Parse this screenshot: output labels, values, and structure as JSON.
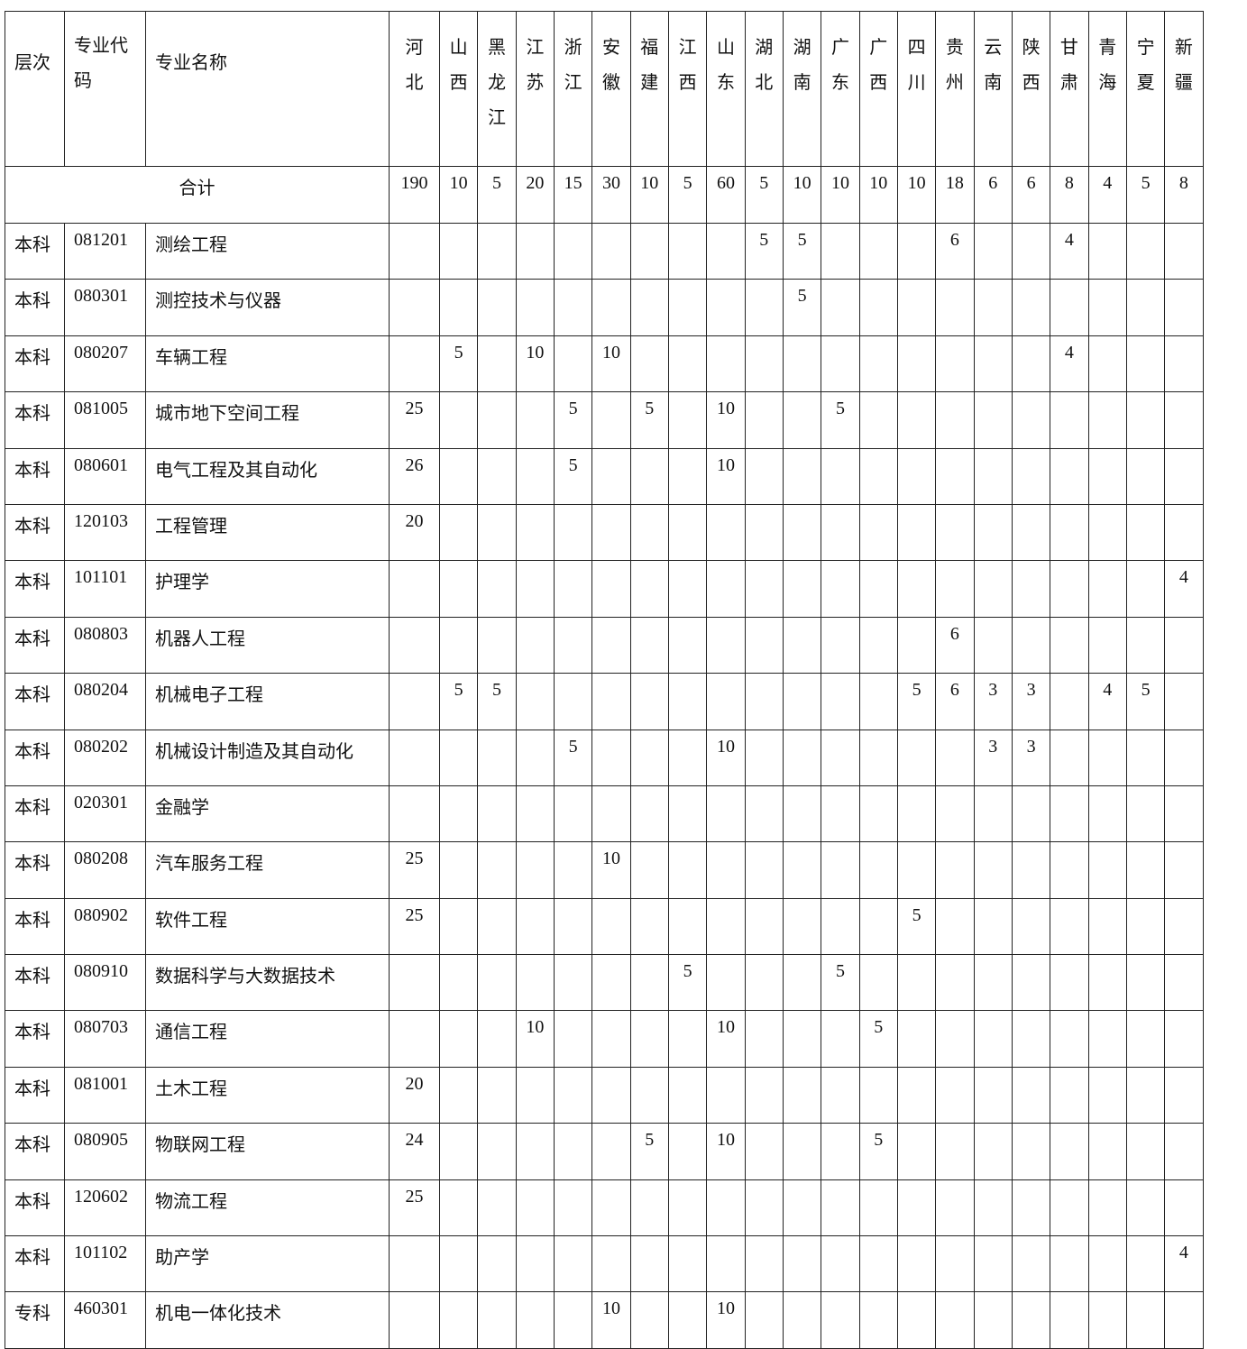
{
  "headers": {
    "level": "层次",
    "code": "专业代码",
    "name": "专业名称",
    "provinces": [
      "河北",
      "山西",
      "黑龙江",
      "江苏",
      "浙江",
      "安徽",
      "福建",
      "江西",
      "山东",
      "湖北",
      "湖南",
      "广东",
      "广西",
      "四川",
      "贵州",
      "云南",
      "陕西",
      "甘肃",
      "青海",
      "宁夏",
      "新疆"
    ]
  },
  "total": {
    "label": "合计",
    "values": [
      "190",
      "10",
      "5",
      "20",
      "15",
      "30",
      "10",
      "5",
      "60",
      "5",
      "10",
      "10",
      "10",
      "10",
      "18",
      "6",
      "6",
      "8",
      "4",
      "5",
      "8"
    ]
  },
  "rows": [
    {
      "level": "本科",
      "code": "081201",
      "name": "测绘工程",
      "values": [
        "",
        "",
        "",
        "",
        "",
        "",
        "",
        "",
        "",
        "5",
        "5",
        "",
        "",
        "",
        "6",
        "",
        "",
        "4",
        "",
        "",
        ""
      ]
    },
    {
      "level": "本科",
      "code": "080301",
      "name": "测控技术与仪器",
      "values": [
        "",
        "",
        "",
        "",
        "",
        "",
        "",
        "",
        "",
        "",
        "5",
        "",
        "",
        "",
        "",
        "",
        "",
        "",
        "",
        "",
        ""
      ]
    },
    {
      "level": "本科",
      "code": "080207",
      "name": "车辆工程",
      "values": [
        "",
        "5",
        "",
        "10",
        "",
        "10",
        "",
        "",
        "",
        "",
        "",
        "",
        "",
        "",
        "",
        "",
        "",
        "4",
        "",
        "",
        ""
      ]
    },
    {
      "level": "本科",
      "code": "081005",
      "name": "城市地下空间工程",
      "values": [
        "25",
        "",
        "",
        "",
        "5",
        "",
        "5",
        "",
        "10",
        "",
        "",
        "5",
        "",
        "",
        "",
        "",
        "",
        "",
        "",
        "",
        ""
      ]
    },
    {
      "level": "本科",
      "code": "080601",
      "name": "电气工程及其自动化",
      "values": [
        "26",
        "",
        "",
        "",
        "5",
        "",
        "",
        "",
        "10",
        "",
        "",
        "",
        "",
        "",
        "",
        "",
        "",
        "",
        "",
        "",
        ""
      ]
    },
    {
      "level": "本科",
      "code": "120103",
      "name": "工程管理",
      "values": [
        "20",
        "",
        "",
        "",
        "",
        "",
        "",
        "",
        "",
        "",
        "",
        "",
        "",
        "",
        "",
        "",
        "",
        "",
        "",
        "",
        ""
      ]
    },
    {
      "level": "本科",
      "code": "101101",
      "name": "护理学",
      "values": [
        "",
        "",
        "",
        "",
        "",
        "",
        "",
        "",
        "",
        "",
        "",
        "",
        "",
        "",
        "",
        "",
        "",
        "",
        "",
        "",
        "4"
      ]
    },
    {
      "level": "本科",
      "code": "080803",
      "name": "机器人工程",
      "values": [
        "",
        "",
        "",
        "",
        "",
        "",
        "",
        "",
        "",
        "",
        "",
        "",
        "",
        "",
        "6",
        "",
        "",
        "",
        "",
        "",
        ""
      ]
    },
    {
      "level": "本科",
      "code": "080204",
      "name": "机械电子工程",
      "values": [
        "",
        "5",
        "5",
        "",
        "",
        "",
        "",
        "",
        "",
        "",
        "",
        "",
        "",
        "5",
        "6",
        "3",
        "3",
        "",
        "4",
        "5",
        ""
      ]
    },
    {
      "level": "本科",
      "code": "080202",
      "name": "机械设计制造及其自动化",
      "values": [
        "",
        "",
        "",
        "",
        "5",
        "",
        "",
        "",
        "10",
        "",
        "",
        "",
        "",
        "",
        "",
        "3",
        "3",
        "",
        "",
        "",
        ""
      ]
    },
    {
      "level": "本科",
      "code": "020301",
      "name": "金融学",
      "values": [
        "",
        "",
        "",
        "",
        "",
        "",
        "",
        "",
        "",
        "",
        "",
        "",
        "",
        "",
        "",
        "",
        "",
        "",
        "",
        "",
        ""
      ]
    },
    {
      "level": "本科",
      "code": "080208",
      "name": "汽车服务工程",
      "values": [
        "25",
        "",
        "",
        "",
        "",
        "10",
        "",
        "",
        "",
        "",
        "",
        "",
        "",
        "",
        "",
        "",
        "",
        "",
        "",
        "",
        ""
      ]
    },
    {
      "level": "本科",
      "code": "080902",
      "name": "软件工程",
      "values": [
        "25",
        "",
        "",
        "",
        "",
        "",
        "",
        "",
        "",
        "",
        "",
        "",
        "",
        "5",
        "",
        "",
        "",
        "",
        "",
        "",
        ""
      ]
    },
    {
      "level": "本科",
      "code": "080910",
      "name": "数据科学与大数据技术",
      "values": [
        "",
        "",
        "",
        "",
        "",
        "",
        "",
        "5",
        "",
        "",
        "",
        "5",
        "",
        "",
        "",
        "",
        "",
        "",
        "",
        "",
        ""
      ]
    },
    {
      "level": "本科",
      "code": "080703",
      "name": "通信工程",
      "values": [
        "",
        "",
        "",
        "10",
        "",
        "",
        "",
        "",
        "10",
        "",
        "",
        "",
        "5",
        "",
        "",
        "",
        "",
        "",
        "",
        "",
        ""
      ]
    },
    {
      "level": "本科",
      "code": "081001",
      "name": "土木工程",
      "values": [
        "20",
        "",
        "",
        "",
        "",
        "",
        "",
        "",
        "",
        "",
        "",
        "",
        "",
        "",
        "",
        "",
        "",
        "",
        "",
        "",
        ""
      ]
    },
    {
      "level": "本科",
      "code": "080905",
      "name": "物联网工程",
      "values": [
        "24",
        "",
        "",
        "",
        "",
        "",
        "5",
        "",
        "10",
        "",
        "",
        "",
        "5",
        "",
        "",
        "",
        "",
        "",
        "",
        "",
        ""
      ]
    },
    {
      "level": "本科",
      "code": "120602",
      "name": "物流工程",
      "values": [
        "25",
        "",
        "",
        "",
        "",
        "",
        "",
        "",
        "",
        "",
        "",
        "",
        "",
        "",
        "",
        "",
        "",
        "",
        "",
        "",
        ""
      ]
    },
    {
      "level": "本科",
      "code": "101102",
      "name": "助产学",
      "values": [
        "",
        "",
        "",
        "",
        "",
        "",
        "",
        "",
        "",
        "",
        "",
        "",
        "",
        "",
        "",
        "",
        "",
        "",
        "",
        "",
        "4"
      ]
    },
    {
      "level": "专科",
      "code": "460301",
      "name": "机电一体化技术",
      "values": [
        "",
        "",
        "",
        "",
        "",
        "10",
        "",
        "",
        "10",
        "",
        "",
        "",
        "",
        "",
        "",
        "",
        "",
        "",
        "",
        "",
        ""
      ]
    }
  ]
}
